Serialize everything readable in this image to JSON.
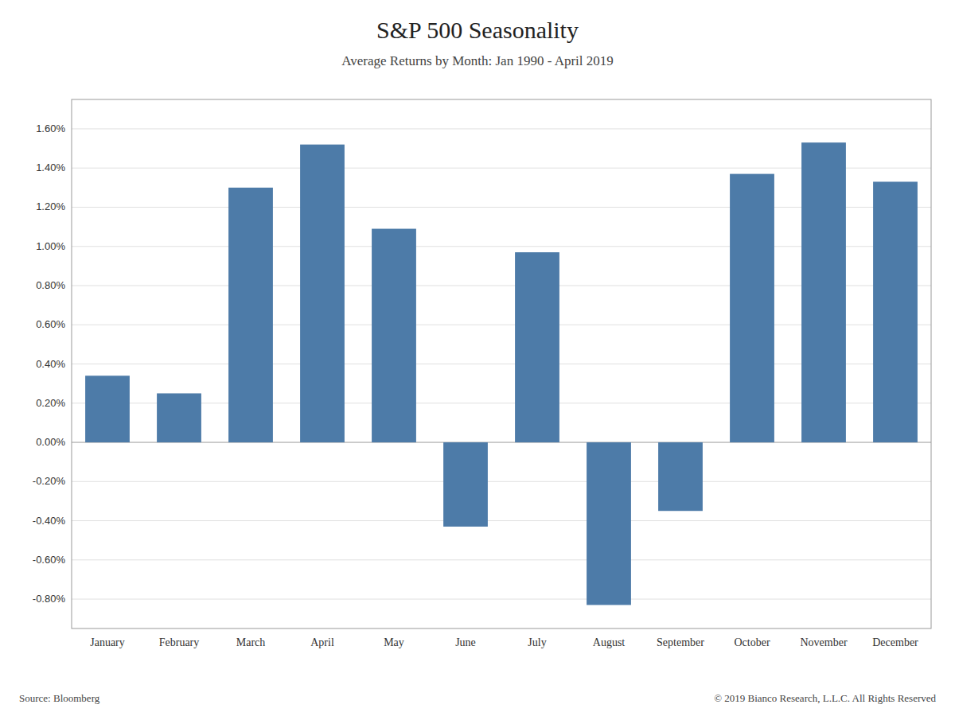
{
  "chart_data": {
    "type": "bar",
    "title": "S&P 500 Seasonality",
    "subtitle": "Average Returns by Month: Jan 1990 - April 2019",
    "categories": [
      "January",
      "February",
      "March",
      "April",
      "May",
      "June",
      "July",
      "August",
      "September",
      "October",
      "November",
      "December"
    ],
    "values": [
      0.0034,
      0.0025,
      0.013,
      0.0152,
      0.0109,
      -0.0043,
      0.0097,
      -0.0083,
      -0.0035,
      0.0137,
      0.0153,
      0.0133
    ],
    "color": "#4D7BA8",
    "ylim": [
      -0.0095,
      0.0175
    ],
    "yticks": [
      {
        "value": -0.008,
        "label": "-0.80%"
      },
      {
        "value": -0.006,
        "label": "-0.60%"
      },
      {
        "value": -0.004,
        "label": "-0.40%"
      },
      {
        "value": -0.002,
        "label": "-0.20%"
      },
      {
        "value": 0.0,
        "label": "0.00%"
      },
      {
        "value": 0.002,
        "label": "0.20%"
      },
      {
        "value": 0.004,
        "label": "0.40%"
      },
      {
        "value": 0.006,
        "label": "0.60%"
      },
      {
        "value": 0.008,
        "label": "0.80%"
      },
      {
        "value": 0.01,
        "label": "1.00%"
      },
      {
        "value": 0.012,
        "label": "1.20%"
      },
      {
        "value": 0.014,
        "label": "1.40%"
      },
      {
        "value": 0.016,
        "label": "1.60%"
      }
    ],
    "grid": true,
    "annotations": [
      "Source: Bloomberg",
      "© 2019 Bianco Research, L.L.C. All Rights Reserved"
    ]
  }
}
